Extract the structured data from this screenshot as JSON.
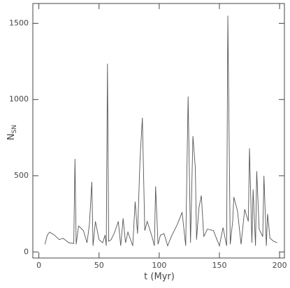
{
  "chart_data": {
    "type": "line",
    "xlabel": "t (Myr)",
    "ylabel": "N",
    "ylabel_sub": "SN",
    "color": "#555555",
    "x": [
      5,
      7,
      9,
      13,
      17,
      20,
      25,
      29,
      30,
      31,
      33,
      37,
      40,
      42,
      44,
      45,
      47,
      50,
      53,
      55,
      56,
      57,
      58,
      60,
      63,
      66,
      68,
      70,
      72,
      74,
      78,
      80,
      82,
      84,
      86,
      88,
      90,
      94,
      96,
      97,
      99,
      101,
      104,
      107,
      110,
      115,
      119,
      122,
      124,
      126,
      128,
      130,
      131,
      133,
      135,
      137,
      140,
      145,
      150,
      153,
      156,
      157,
      159,
      161,
      162,
      165,
      168,
      171,
      174,
      175,
      177,
      178,
      180,
      181,
      183,
      186,
      187,
      189,
      190,
      192,
      195,
      198
    ],
    "values": [
      50,
      110,
      130,
      110,
      80,
      90,
      60,
      55,
      610,
      50,
      170,
      140,
      60,
      180,
      460,
      40,
      200,
      80,
      60,
      110,
      40,
      1235,
      70,
      80,
      130,
      200,
      40,
      220,
      60,
      130,
      40,
      330,
      120,
      600,
      880,
      140,
      200,
      100,
      40,
      430,
      50,
      110,
      120,
      40,
      100,
      180,
      260,
      40,
      1020,
      60,
      760,
      550,
      80,
      290,
      370,
      100,
      150,
      140,
      40,
      160,
      40,
      1550,
      50,
      200,
      360,
      270,
      50,
      280,
      200,
      680,
      60,
      410,
      40,
      530,
      150,
      100,
      500,
      40,
      250,
      90,
      70,
      60
    ],
    "xlim": [
      -5,
      204
    ],
    "ylim": [
      -40,
      1630
    ],
    "xticks": [
      0,
      50,
      100,
      150,
      200
    ],
    "yticks": [
      0,
      500,
      1000,
      1500
    ]
  }
}
